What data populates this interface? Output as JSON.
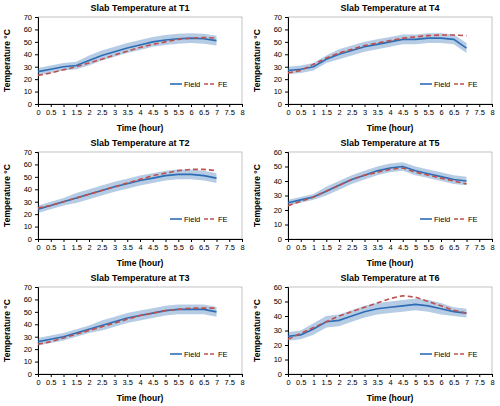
{
  "chart_data": [
    {
      "type": "line",
      "title": "Slab Temperature at T1",
      "x_label": "Time (hour)",
      "y_label": "Temperature °C",
      "x": [
        0,
        0.5,
        1,
        1.5,
        2,
        2.5,
        3,
        3.5,
        4,
        4.5,
        5,
        5.5,
        6,
        6.5,
        7
      ],
      "xlim": [
        0,
        8
      ],
      "xticks": [
        0,
        0.5,
        1,
        1.5,
        2,
        2.5,
        3,
        3.5,
        4,
        4.5,
        5,
        5.5,
        6,
        6.5,
        7,
        7.5,
        8
      ],
      "ylim": [
        0,
        70
      ],
      "yticks": [
        0,
        10,
        20,
        30,
        40,
        50,
        60,
        70
      ],
      "legend": "lower right",
      "series": [
        {
          "name": "Field",
          "color": "#2e6db4",
          "line_style": "solid",
          "values": [
            26,
            28,
            30,
            31,
            35,
            39,
            42,
            45,
            47.5,
            50,
            51.5,
            52.5,
            53,
            52.5,
            51
          ],
          "error": [
            3,
            3,
            3,
            3,
            4,
            4,
            4,
            4,
            4,
            4,
            4,
            4,
            4,
            4,
            4
          ]
        },
        {
          "name": "FE",
          "color": "#c0504d",
          "line_style": "dashed",
          "values": [
            23,
            25,
            27.5,
            30,
            33,
            36,
            39.5,
            42.5,
            45.5,
            48,
            50,
            52,
            53,
            53.5,
            53
          ]
        }
      ]
    },
    {
      "type": "line",
      "title": "Slab Temperature at T2",
      "x_label": "Time (hour)",
      "y_label": "Temperature °C",
      "x": [
        0,
        0.5,
        1,
        1.5,
        2,
        2.5,
        3,
        3.5,
        4,
        4.5,
        5,
        5.5,
        6,
        6.5,
        7
      ],
      "xlim": [
        0,
        8
      ],
      "xticks": [
        0,
        0.5,
        1,
        1.5,
        2,
        2.5,
        3,
        3.5,
        4,
        4.5,
        5,
        5.5,
        6,
        6.5,
        7,
        7.5,
        8
      ],
      "ylim": [
        0,
        70
      ],
      "yticks": [
        0,
        10,
        20,
        30,
        40,
        50,
        60,
        70
      ],
      "legend": "lower right",
      "series": [
        {
          "name": "Field",
          "color": "#2e6db4",
          "line_style": "solid",
          "values": [
            24,
            27,
            30,
            33,
            36,
            39,
            42,
            44.5,
            47,
            49,
            51,
            52,
            52,
            51,
            49
          ],
          "error": [
            3,
            3,
            3,
            4,
            4,
            4,
            4,
            4,
            4,
            4,
            4,
            4,
            4,
            4,
            4
          ]
        },
        {
          "name": "FE",
          "color": "#c0504d",
          "line_style": "dashed",
          "values": [
            25,
            27,
            30,
            33,
            36,
            39,
            42,
            45,
            48,
            51,
            53,
            55,
            56,
            56,
            55
          ]
        }
      ]
    },
    {
      "type": "line",
      "title": "Slab Temperature at T3",
      "x_label": "Time (hour)",
      "y_label": "Temperature °C",
      "x": [
        0,
        0.5,
        1,
        1.5,
        2,
        2.5,
        3,
        3.5,
        4,
        4.5,
        5,
        5.5,
        6,
        6.5,
        7
      ],
      "xlim": [
        0,
        8
      ],
      "xticks": [
        0,
        0.5,
        1,
        1.5,
        2,
        2.5,
        3,
        3.5,
        4,
        4.5,
        5,
        5.5,
        6,
        6.5,
        7,
        7.5,
        8
      ],
      "ylim": [
        0,
        70
      ],
      "yticks": [
        0,
        10,
        20,
        30,
        40,
        50,
        60,
        70
      ],
      "legend": "lower right",
      "series": [
        {
          "name": "Field",
          "color": "#2e6db4",
          "line_style": "solid",
          "values": [
            26,
            28,
            30,
            33,
            36,
            39,
            42,
            45,
            47,
            49,
            51,
            52,
            52,
            52,
            50
          ],
          "error": [
            3,
            3,
            3,
            3,
            3,
            4,
            4,
            4,
            4,
            4,
            4,
            4,
            4,
            4,
            4
          ]
        },
        {
          "name": "FE",
          "color": "#c0504d",
          "line_style": "dashed",
          "values": [
            24,
            26,
            29,
            32,
            35,
            38,
            41,
            44,
            47,
            49,
            51,
            52,
            53,
            53,
            53
          ]
        }
      ]
    },
    {
      "type": "line",
      "title": "Slab Temperature at T4",
      "x_label": "Time (hour)",
      "y_label": "Temperature °C",
      "x": [
        0,
        0.5,
        1,
        1.5,
        2,
        2.5,
        3,
        3.5,
        4,
        4.5,
        5,
        5.5,
        6,
        6.5,
        7
      ],
      "xlim": [
        0,
        8
      ],
      "xticks": [
        0,
        0.5,
        1,
        1.5,
        2,
        2.5,
        3,
        3.5,
        4,
        4.5,
        5,
        5.5,
        6,
        6.5,
        7,
        7.5,
        8
      ],
      "ylim": [
        0,
        70
      ],
      "yticks": [
        0,
        10,
        20,
        30,
        40,
        50,
        60,
        70
      ],
      "legend": "lower right",
      "series": [
        {
          "name": "Field",
          "color": "#2e6db4",
          "line_style": "solid",
          "values": [
            27,
            28,
            30,
            36,
            40,
            43,
            46,
            48,
            50,
            52,
            52,
            53,
            53,
            52,
            45
          ],
          "error": [
            3,
            3,
            3,
            3,
            4,
            4,
            4,
            4,
            4,
            4,
            4,
            4,
            4,
            4,
            4
          ]
        },
        {
          "name": "FE",
          "color": "#c0504d",
          "line_style": "dashed",
          "values": [
            25,
            27,
            32,
            37,
            41,
            44,
            47,
            49,
            51,
            53,
            54,
            55,
            55.5,
            55.5,
            55
          ]
        }
      ]
    },
    {
      "type": "line",
      "title": "Slab Temperature at T5",
      "x_label": "Time (hour)",
      "y_label": "Temperature °C",
      "x": [
        0,
        0.5,
        1,
        1.5,
        2,
        2.5,
        3,
        3.5,
        4,
        4.5,
        5,
        5.5,
        6,
        6.5,
        7
      ],
      "xlim": [
        0,
        8
      ],
      "xticks": [
        0,
        0.5,
        1,
        1.5,
        2,
        2.5,
        3,
        3.5,
        4,
        4.5,
        5,
        5.5,
        6,
        6.5,
        7,
        7.5,
        8
      ],
      "ylim": [
        0,
        60
      ],
      "yticks": [
        0,
        10,
        20,
        30,
        40,
        50,
        60
      ],
      "legend": "lower right",
      "series": [
        {
          "name": "Field",
          "color": "#2e6db4",
          "line_style": "solid",
          "values": [
            25,
            27,
            29,
            33,
            37,
            41,
            44,
            47,
            49,
            50,
            47,
            45,
            43,
            41,
            40
          ],
          "error": [
            2,
            2,
            2,
            3,
            3,
            3,
            3,
            3,
            3,
            3,
            3,
            3,
            3,
            3,
            3
          ]
        },
        {
          "name": "FE",
          "color": "#c0504d",
          "line_style": "dashed",
          "values": [
            23,
            26,
            29,
            33,
            37,
            41,
            44,
            46,
            48,
            49,
            46,
            44,
            42,
            40,
            38
          ]
        }
      ]
    },
    {
      "type": "line",
      "title": "Slab Temperature at T6",
      "x_label": "Time (hour)",
      "y_label": "Temperature °C",
      "x": [
        0,
        0.5,
        1,
        1.5,
        2,
        2.5,
        3,
        3.5,
        4,
        4.5,
        5,
        5.5,
        6,
        6.5,
        7
      ],
      "xlim": [
        0,
        8
      ],
      "xticks": [
        0,
        0.5,
        1,
        1.5,
        2,
        2.5,
        3,
        3.5,
        4,
        4.5,
        5,
        5.5,
        6,
        6.5,
        7,
        7.5,
        8
      ],
      "ylim": [
        0,
        60
      ],
      "yticks": [
        0,
        10,
        20,
        30,
        40,
        50,
        60
      ],
      "legend": "lower right",
      "series": [
        {
          "name": "Field",
          "color": "#2e6db4",
          "line_style": "solid",
          "values": [
            26,
            27,
            31,
            36,
            37,
            40,
            43,
            45,
            46,
            47,
            48,
            47,
            45,
            43,
            42
          ],
          "error": [
            3,
            3,
            4,
            4,
            4,
            4,
            4,
            4,
            4,
            4,
            4,
            4,
            4,
            3,
            3
          ]
        },
        {
          "name": "FE",
          "color": "#c0504d",
          "line_style": "dashed",
          "values": [
            24,
            28,
            32,
            36,
            40,
            43,
            46,
            49,
            52,
            54,
            53,
            50,
            47,
            44,
            42
          ]
        }
      ]
    }
  ]
}
